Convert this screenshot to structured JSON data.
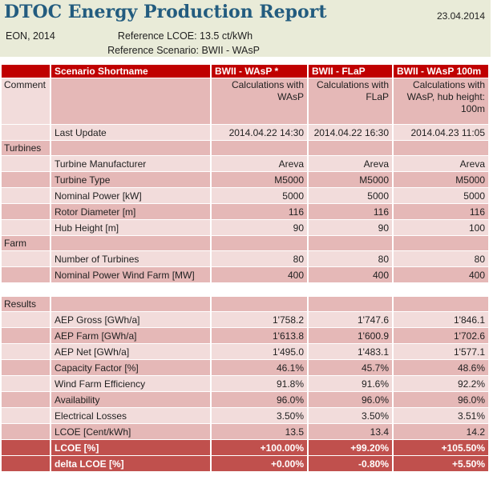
{
  "banner": {
    "title": "DTOC Energy Production Report",
    "date": "23.04.2014",
    "company": "EON, 2014",
    "reference_lcoe": "Reference LCOE: 13.5 ct/kWh",
    "reference_scenario": "Reference Scenario: BWII - WAsP"
  },
  "colors": {
    "banner_background": "#E9EBD8",
    "title_blue": "#235C7F",
    "header_red": "#C00000",
    "total_row_red": "#C0504D",
    "row_light_pink": "#F2DCDB",
    "row_medium_pink": "#E5B8B7",
    "text": "#1F1F1F"
  },
  "table": {
    "columns": [
      "",
      "Scenario Shortname",
      "BWII - WAsP *",
      "BWII - FLaP",
      "BWII - WAsP 100m"
    ],
    "rows": [
      {
        "type": "comment",
        "label": "Comment",
        "values": [
          "Calculations with WAsP",
          "Calculations with FLaP",
          "Calculations with WAsP, hub height: 100m"
        ],
        "shade": "medium"
      },
      {
        "type": "data",
        "label": "Last Update",
        "values": [
          "2014.04.22 14:30",
          "2014.04.22 16:30",
          "2014.04.23 11:05"
        ],
        "shade": "light"
      },
      {
        "type": "section",
        "label": "Turbines",
        "values": [
          "",
          "",
          ""
        ],
        "shade": "medium"
      },
      {
        "type": "data",
        "label": "Turbine Manufacturer",
        "values": [
          "Areva",
          "Areva",
          "Areva"
        ],
        "shade": "light"
      },
      {
        "type": "data",
        "label": "Turbine Type",
        "values": [
          "M5000",
          "M5000",
          "M5000"
        ],
        "shade": "medium"
      },
      {
        "type": "data",
        "label": "Nominal Power [kW]",
        "values": [
          "5000",
          "5000",
          "5000"
        ],
        "shade": "light"
      },
      {
        "type": "data",
        "label": "Rotor Diameter [m]",
        "values": [
          "116",
          "116",
          "116"
        ],
        "shade": "medium"
      },
      {
        "type": "data",
        "label": "Hub Height [m]",
        "values": [
          "90",
          "90",
          "100"
        ],
        "shade": "light"
      },
      {
        "type": "section",
        "label": "Farm",
        "values": [
          "",
          "",
          ""
        ],
        "shade": "medium"
      },
      {
        "type": "data",
        "label": "Number of Turbines",
        "values": [
          "80",
          "80",
          "80"
        ],
        "shade": "light"
      },
      {
        "type": "data",
        "label": "Nominal Power Wind Farm [MW]",
        "values": [
          "400",
          "400",
          "400"
        ],
        "shade": "medium"
      },
      {
        "type": "spacer",
        "label": "",
        "values": [
          "",
          "",
          ""
        ],
        "shade": "white"
      },
      {
        "type": "section",
        "label": "Results",
        "values": [
          "",
          "",
          ""
        ],
        "shade": "medium"
      },
      {
        "type": "data",
        "label": "AEP Gross [GWh/a]",
        "values": [
          "1'758.2",
          "1'747.6",
          "1'846.1"
        ],
        "shade": "light"
      },
      {
        "type": "data",
        "label": "AEP Farm [GWh/a]",
        "values": [
          "1'613.8",
          "1'600.9",
          "1'702.6"
        ],
        "shade": "medium"
      },
      {
        "type": "data",
        "label": "AEP Net [GWh/a]",
        "values": [
          "1'495.0",
          "1'483.1",
          "1'577.1"
        ],
        "shade": "light"
      },
      {
        "type": "data",
        "label": "Capacity Factor [%]",
        "values": [
          "46.1%",
          "45.7%",
          "48.6%"
        ],
        "shade": "medium"
      },
      {
        "type": "data",
        "label": "Wind Farm Efficiency",
        "values": [
          "91.8%",
          "91.6%",
          "92.2%"
        ],
        "shade": "light"
      },
      {
        "type": "data",
        "label": "Availability",
        "values": [
          "96.0%",
          "96.0%",
          "96.0%"
        ],
        "shade": "medium"
      },
      {
        "type": "data",
        "label": "Electrical Losses",
        "values": [
          "3.50%",
          "3.50%",
          "3.51%"
        ],
        "shade": "light"
      },
      {
        "type": "data",
        "label": "LCOE [Cent/kWh]",
        "values": [
          "13.5",
          "13.4",
          "14.2"
        ],
        "shade": "medium"
      },
      {
        "type": "total",
        "label": "LCOE [%]",
        "values": [
          "+100.00%",
          "+99.20%",
          "+105.50%"
        ],
        "shade": "red"
      },
      {
        "type": "total",
        "label": "delta LCOE [%]",
        "values": [
          "+0.00%",
          "-0.80%",
          "+5.50%"
        ],
        "shade": "red"
      }
    ]
  }
}
